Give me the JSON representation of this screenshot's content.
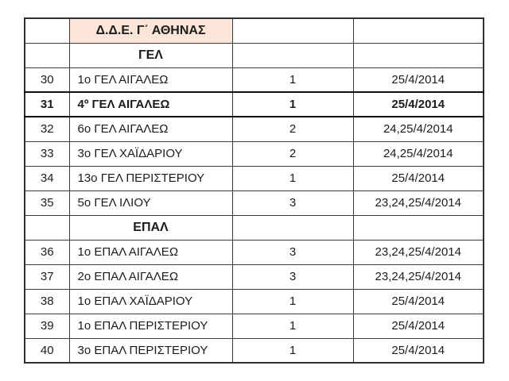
{
  "table": {
    "district_title": "Δ.Δ.Ε. Γ΄ ΑΘΗΝΑΣ",
    "colors": {
      "district_header_bg": "#fbe5d6",
      "border": "#3a3a3a",
      "text": "#1c1c1c"
    },
    "sections": [
      {
        "label": "ΓΕΛ",
        "rows": [
          {
            "num": "30",
            "school": "1ο ΓΕΛ ΑΙΓΑΛΕΩ",
            "days": "1",
            "dates": "25/4/2014",
            "bold": false
          },
          {
            "num": "31",
            "school": "4º ΓΕΛ ΑΙΓΑΛΕΩ",
            "days": "1",
            "dates": "25/4/2014",
            "bold": true
          },
          {
            "num": "32",
            "school": "6ο ΓΕΛ ΑΙΓΑΛΕΩ",
            "days": "2",
            "dates": "24,25/4/2014",
            "bold": false
          },
          {
            "num": "33",
            "school": "3ο ΓΕΛ ΧΑΪΔΑΡΙΟΥ",
            "days": "2",
            "dates": "24,25/4/2014",
            "bold": false
          },
          {
            "num": "34",
            "school": "13ο ΓΕΛ ΠΕΡΙΣΤΕΡΙΟΥ",
            "days": "1",
            "dates": "25/4/2014",
            "bold": false
          },
          {
            "num": "35",
            "school": "5ο ΓΕΛ ΙΛΙΟΥ",
            "days": "3",
            "dates": "23,24,25/4/2014",
            "bold": false
          }
        ]
      },
      {
        "label": "ΕΠΑΛ",
        "rows": [
          {
            "num": "36",
            "school": "1ο ΕΠΑΛ ΑΙΓΑΛΕΩ",
            "days": "3",
            "dates": "23,24,25/4/2014",
            "bold": false
          },
          {
            "num": "37",
            "school": "2ο ΕΠΑΛ ΑΙΓΑΛΕΩ",
            "days": "3",
            "dates": "23,24,25/4/2014",
            "bold": false
          },
          {
            "num": "38",
            "school": "1ο ΕΠΑΛ ΧΑΪΔΑΡΙΟΥ",
            "days": "1",
            "dates": "25/4/2014",
            "bold": false
          },
          {
            "num": "39",
            "school": "1ο ΕΠΑΛ ΠΕΡΙΣΤΕΡΙΟΥ",
            "days": "1",
            "dates": "25/4/2014",
            "bold": false
          },
          {
            "num": "40",
            "school": "3ο ΕΠΑΛ ΠΕΡΙΣΤΕΡΙΟΥ",
            "days": "1",
            "dates": "25/4/2014",
            "bold": false
          }
        ]
      }
    ]
  }
}
